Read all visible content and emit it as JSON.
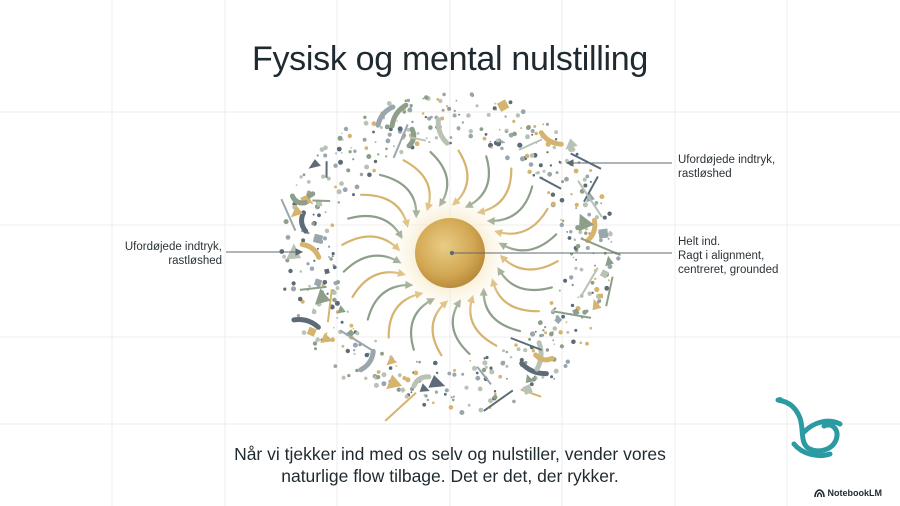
{
  "title": "Fysisk og mental nulstilling",
  "labels": {
    "left": [
      "Ufordøjede indtryk,",
      "rastløshed"
    ],
    "right_top": [
      "Ufordøjede indtryk,",
      "rastløshed"
    ],
    "right_mid": [
      "Helt ind.",
      "Ragt i alignment,",
      "centreret, grounded"
    ]
  },
  "caption": [
    "Når vi tjekker ind med os selv og nulstiller, vender vores",
    "naturlige flow tilbage. Det er det, der rykker."
  ],
  "brand": {
    "name": "NotebookLM",
    "icon": "notebooklm-icon"
  },
  "colors": {
    "sun": "#d4a94e",
    "sage": "#8d9f8a",
    "gold": "#d6b46e",
    "slate": "#5d6b78",
    "teal": "#2a9aa3"
  }
}
